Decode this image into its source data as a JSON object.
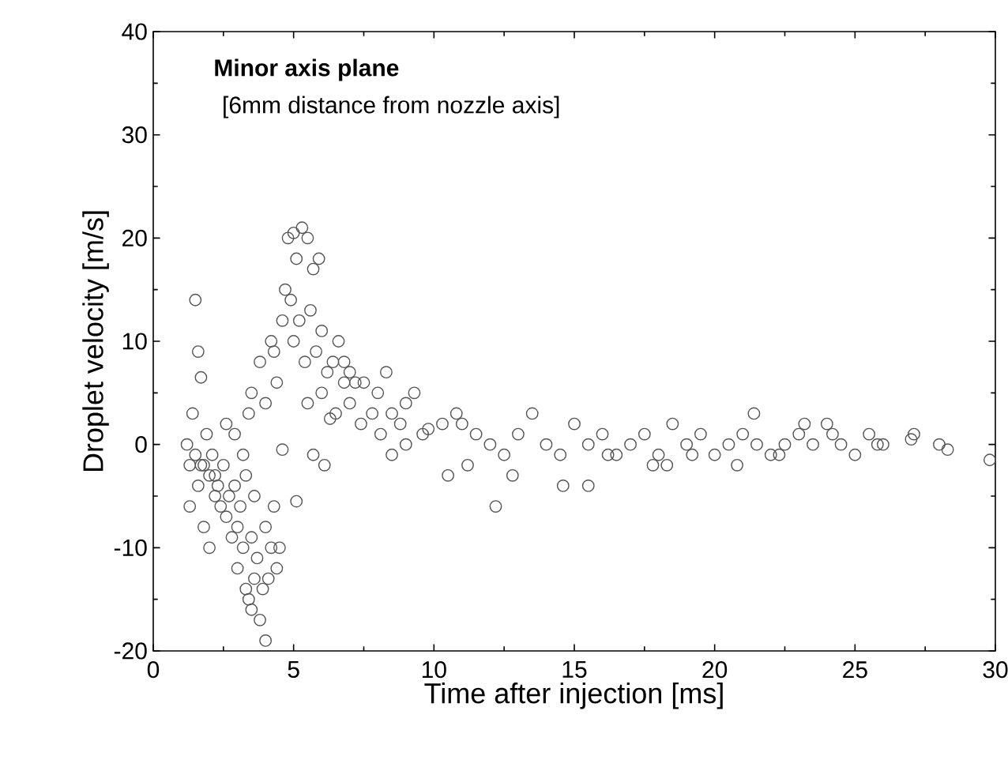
{
  "chart_data": {
    "type": "scatter",
    "xlabel": "Time after injection [ms]",
    "ylabel": "Droplet velocity [m/s]",
    "annotations": [
      "**Minor axis plane**",
      "[6mm distance from nozzle axis]"
    ],
    "xlim": [
      0,
      30
    ],
    "ylim": [
      -20,
      40
    ],
    "xticks": [
      0,
      5,
      10,
      15,
      20,
      25,
      30
    ],
    "yticks": [
      -20,
      -10,
      0,
      10,
      20,
      30,
      40
    ],
    "marker": "circle",
    "grid": false,
    "series": [
      {
        "color": "#555555",
        "x": [
          1.2,
          1.3,
          1.4,
          1.5,
          1.5,
          1.6,
          1.6,
          1.7,
          1.8,
          1.8,
          1.9,
          2.0,
          2.0,
          2.1,
          2.2,
          2.3,
          2.4,
          2.5,
          2.6,
          2.7,
          2.8,
          2.9,
          3.0,
          3.0,
          3.1,
          3.2,
          3.3,
          3.3,
          3.4,
          3.5,
          3.5,
          3.6,
          3.6,
          3.7,
          3.8,
          3.9,
          4.0,
          4.0,
          4.1,
          4.2,
          4.3,
          4.4,
          4.5,
          3.4,
          2.9,
          2.6,
          3.2,
          3.5,
          3.8,
          4.0,
          4.2,
          4.4,
          4.6,
          4.3,
          4.7,
          4.8,
          5.0,
          4.9,
          5.1,
          5.3,
          5.5,
          5.7,
          5.9,
          5.0,
          5.2,
          5.4,
          5.6,
          5.8,
          6.0,
          6.2,
          6.4,
          6.6,
          6.8,
          7.0,
          5.5,
          6.0,
          6.5,
          7.0,
          7.5,
          8.0,
          8.5,
          9.0,
          6.3,
          6.8,
          7.2,
          7.8,
          8.3,
          8.8,
          9.3,
          9.8,
          10.3,
          10.8,
          5.7,
          6.1,
          7.4,
          8.1,
          9.0,
          9.6,
          10.5,
          11.0,
          11.5,
          12.0,
          12.5,
          13.0,
          13.5,
          14.0,
          14.5,
          15.0,
          15.5,
          16.0,
          16.5,
          17.0,
          17.5,
          18.0,
          18.5,
          19.0,
          19.5,
          20.0,
          20.5,
          21.0,
          21.5,
          22.0,
          22.5,
          23.0,
          23.5,
          24.0,
          24.5,
          25.0,
          25.5,
          26.0,
          27.0,
          27.1,
          28.0,
          28.3,
          29.8,
          11.2,
          12.8,
          14.6,
          16.2,
          17.8,
          19.2,
          20.8,
          22.3,
          24.2,
          25.8,
          18.3,
          21.4,
          23.2,
          8.5,
          5.1,
          4.6,
          1.3,
          1.7,
          2.2,
          12.2,
          15.5
        ],
        "values": [
          0,
          -2,
          3,
          14,
          -1,
          9,
          -4,
          6.5,
          -8,
          -2,
          1,
          -3,
          -10,
          -1,
          -5,
          -4,
          -6,
          -2,
          -7,
          -5,
          -9,
          -4,
          -8,
          -12,
          -6,
          -10,
          -14,
          -3,
          -15,
          -16,
          -9,
          -13,
          -5,
          -11,
          -17,
          -14,
          -19,
          -8,
          -13,
          -10,
          -6,
          -12,
          -10,
          3,
          1,
          2,
          -1,
          5,
          8,
          4,
          10,
          6,
          12,
          9,
          15,
          20,
          20.5,
          14,
          18,
          21,
          20,
          17,
          18,
          10,
          12,
          8,
          13,
          9,
          11,
          7,
          8,
          10,
          6,
          7,
          4,
          5,
          3,
          4,
          6,
          5,
          3,
          4,
          2.5,
          8,
          6,
          3,
          7,
          2,
          5,
          1.5,
          2,
          3,
          -1,
          -2,
          2,
          1,
          0,
          1,
          -3,
          2,
          1,
          0,
          -1,
          1,
          3,
          0,
          -1,
          2,
          0,
          1,
          -1,
          0,
          1,
          -1,
          2,
          0,
          1,
          -1,
          0,
          1,
          0,
          -1,
          0,
          1,
          0,
          2,
          0,
          -1,
          1,
          0,
          0.5,
          1,
          0,
          -0.5,
          -1.5,
          -2,
          -3,
          -4,
          -1,
          -2,
          -1,
          -2,
          -1,
          1,
          0,
          -2,
          3,
          2,
          -1,
          -5.5,
          -0.5,
          -6,
          -2,
          -3,
          -6,
          -4
        ]
      }
    ]
  }
}
